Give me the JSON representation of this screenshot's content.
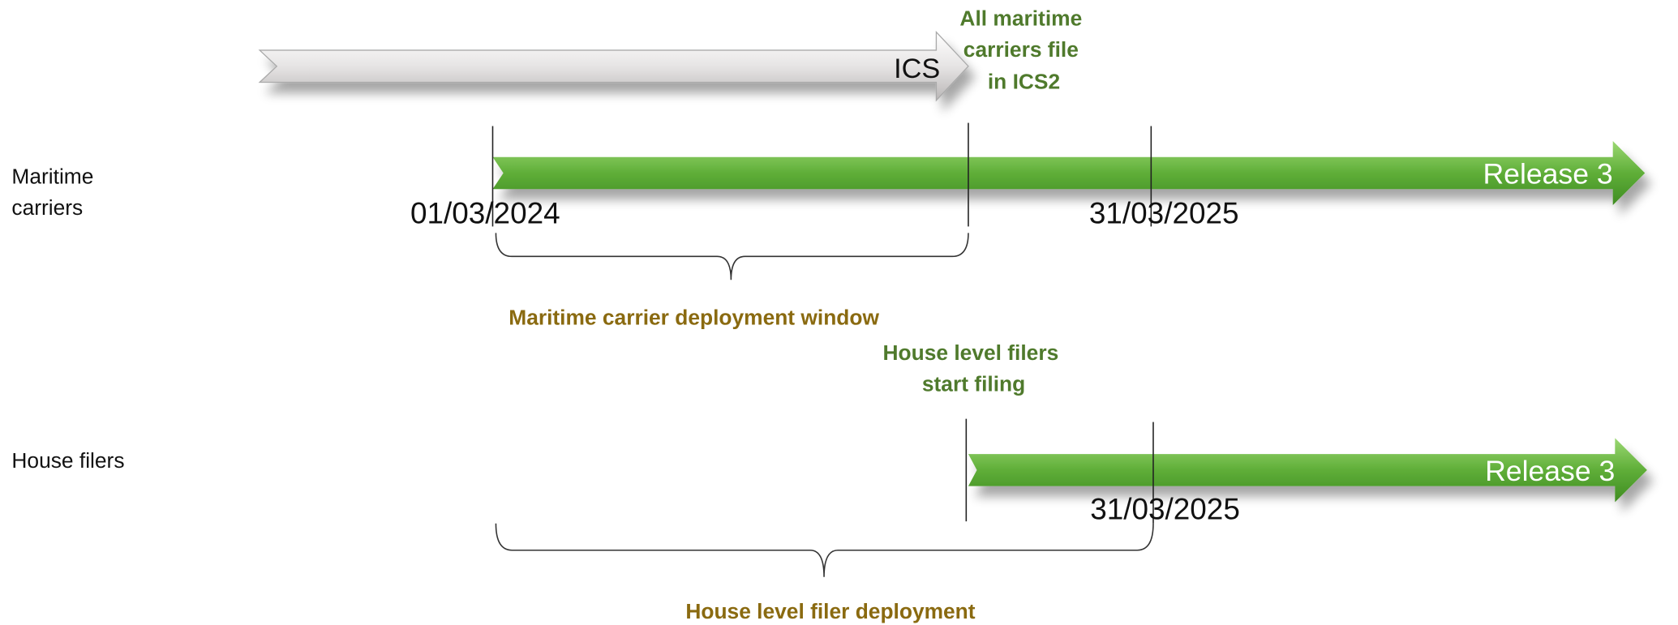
{
  "ics_arrow": {
    "label": "ICS",
    "note_lines": [
      "All maritime",
      "carriers file",
      "in ICS2"
    ]
  },
  "rows": [
    {
      "label_lines": [
        "Maritime",
        "carriers"
      ],
      "release": "Release 3",
      "start_date": "01/03/2024",
      "end_date": "31/03/2025",
      "window": "Maritime carrier deployment window"
    },
    {
      "label_lines": [
        "House filers"
      ],
      "note_lines": [
        "House level filers",
        "start filing"
      ],
      "release": "Release 3",
      "end_date": "31/03/2025",
      "window": "House level filer deployment"
    }
  ]
}
